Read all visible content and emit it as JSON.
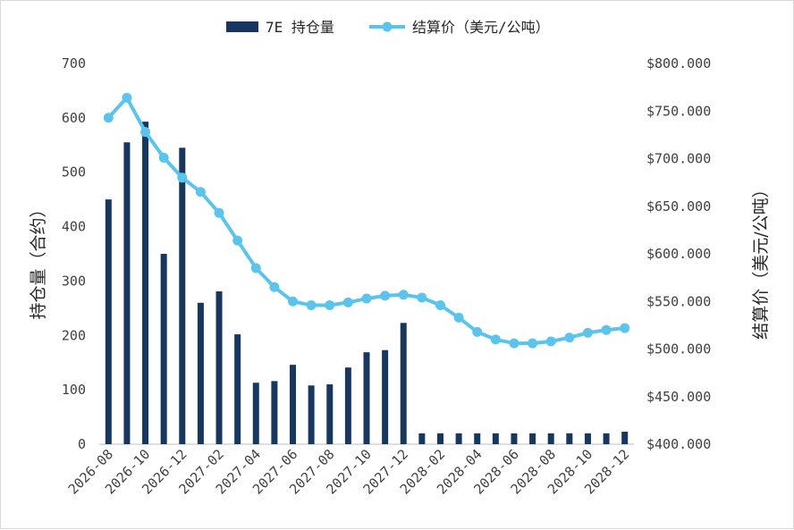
{
  "chart_data": {
    "type": "bar+line",
    "categories": [
      "2026-08",
      "2026-09",
      "2026-10",
      "2026-11",
      "2026-12",
      "2027-01",
      "2027-02",
      "2027-03",
      "2027-04",
      "2027-05",
      "2027-06",
      "2027-07",
      "2027-08",
      "2027-09",
      "2027-10",
      "2027-11",
      "2027-12",
      "2028-01",
      "2028-02",
      "2028-03",
      "2028-04",
      "2028-05",
      "2028-06",
      "2028-07",
      "2028-08",
      "2028-09",
      "2028-10",
      "2028-11",
      "2028-12"
    ],
    "tick_labels": [
      "2026-08",
      "2026-10",
      "2026-12",
      "2027-02",
      "2027-04",
      "2027-06",
      "2027-08",
      "2027-10",
      "2027-12",
      "2028-02",
      "2028-04",
      "2028-06",
      "2028-08",
      "2028-10",
      "2028-12"
    ],
    "series": [
      {
        "name": "7E 持仓量",
        "type": "bar",
        "axis": "left",
        "color": "#17375e",
        "values": [
          450,
          555,
          593,
          350,
          545,
          260,
          281,
          202,
          113,
          116,
          146,
          108,
          110,
          141,
          169,
          173,
          223,
          20,
          20,
          20,
          20,
          20,
          20,
          20,
          20,
          20,
          20,
          20,
          23
        ]
      },
      {
        "name": "结算价（美元/公吨）",
        "type": "line",
        "axis": "right",
        "color": "#5bc4ec",
        "values": [
          743,
          764,
          728,
          701,
          680,
          665,
          643,
          614,
          585,
          565,
          550,
          546,
          546,
          549,
          553,
          556,
          557,
          554,
          546,
          533,
          518,
          510,
          506,
          506,
          508,
          512,
          517,
          520,
          522
        ]
      }
    ],
    "y_left": {
      "label": "持仓量（合约）",
      "min": 0,
      "max": 700,
      "ticks": [
        "0",
        "100",
        "200",
        "300",
        "400",
        "500",
        "600",
        "700"
      ]
    },
    "y_right": {
      "label": "结算价（美元/公吨）",
      "min": 400,
      "max": 800,
      "ticks": [
        "$400.000",
        "$450.000",
        "$500.000",
        "$550.000",
        "$600.000",
        "$650.000",
        "$700.000",
        "$750.000",
        "$800.000"
      ]
    },
    "legend_position": "top",
    "grid": false
  }
}
